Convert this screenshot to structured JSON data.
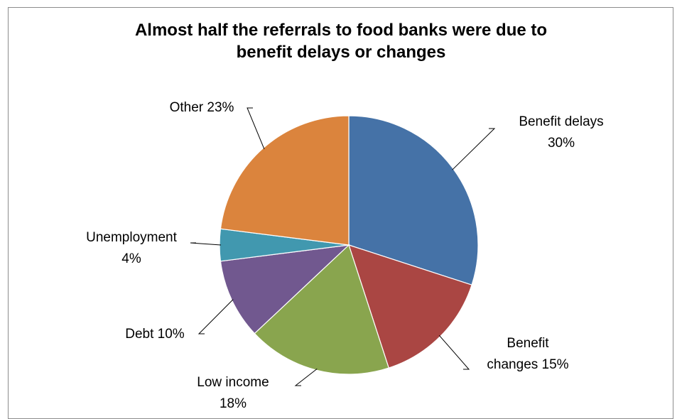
{
  "chart_data": {
    "type": "pie",
    "title": "Almost half the referrals to food banks were due to benefit delays or changes",
    "title_lines": [
      "Almost half the referrals to food banks were due to",
      "benefit delays or changes"
    ],
    "slices": [
      {
        "label": "Benefit delays",
        "value": 30,
        "color": "#4572a7",
        "label_lines": [
          "Benefit delays",
          "30%"
        ]
      },
      {
        "label": "Benefit changes",
        "value": 15,
        "color": "#aa4643",
        "label_lines": [
          "Benefit",
          "changes 15%"
        ]
      },
      {
        "label": "Low income",
        "value": 18,
        "color": "#89a54e",
        "label_lines": [
          "Low income",
          "18%"
        ]
      },
      {
        "label": "Debt",
        "value": 10,
        "color": "#71588f",
        "label_lines": [
          "Debt 10%"
        ]
      },
      {
        "label": "Unemployment",
        "value": 4,
        "color": "#4198af",
        "label_lines": [
          "Unemployment",
          "4%"
        ]
      },
      {
        "label": "Other",
        "value": 23,
        "color": "#db843d",
        "label_lines": [
          "Other 23%"
        ]
      }
    ],
    "legend": "none",
    "data_labels": "outside with leader lines"
  }
}
